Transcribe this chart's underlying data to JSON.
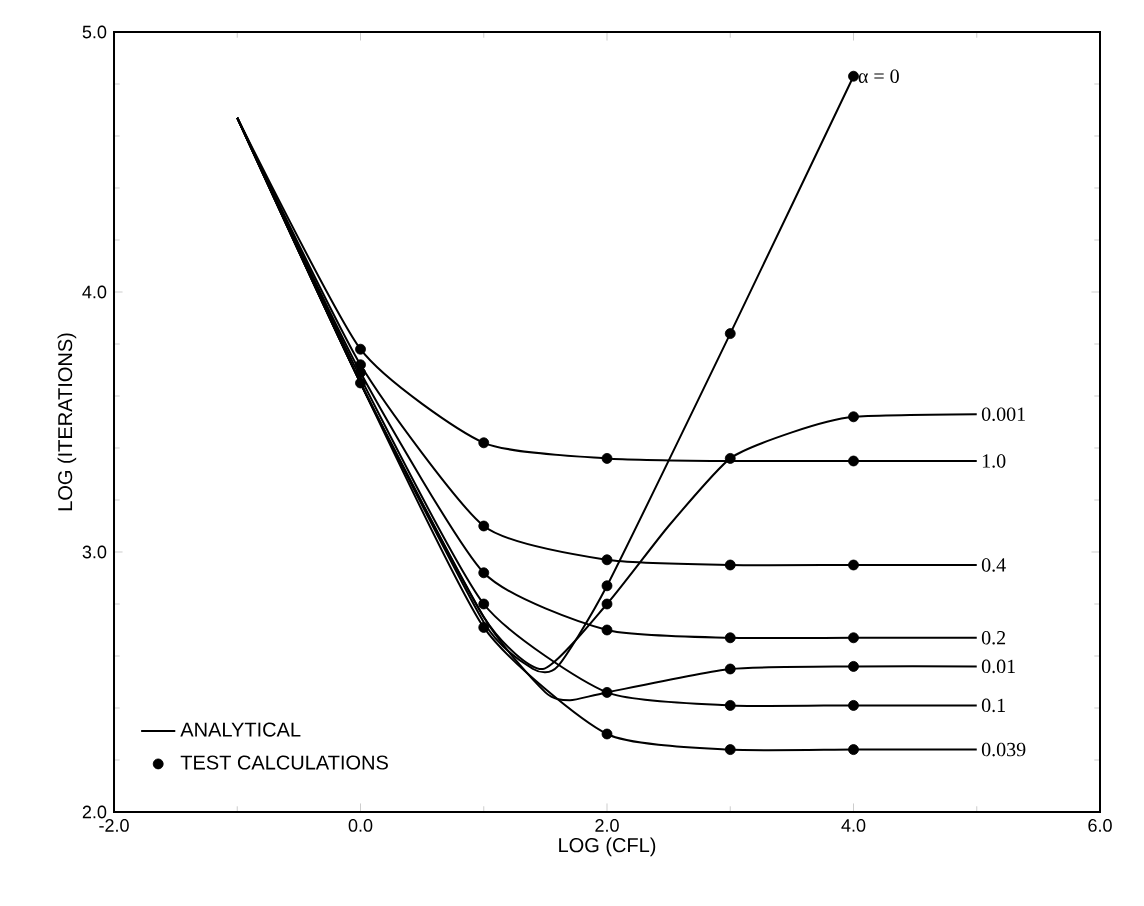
{
  "chart_data": {
    "type": "line",
    "xlabel": "LOG (CFL)",
    "ylabel": "LOG (ITERATIONS)",
    "xlim": [
      -2,
      6
    ],
    "ylim": [
      2,
      5
    ],
    "xticks": [
      {
        "value": -2,
        "label": "-2.0"
      },
      {
        "value": 0,
        "label": "0.0"
      },
      {
        "value": 2,
        "label": "2.0"
      },
      {
        "value": 4,
        "label": "4.0"
      },
      {
        "value": 6,
        "label": "6.0"
      }
    ],
    "yticks": [
      {
        "value": 2,
        "label": "2.0"
      },
      {
        "value": 3,
        "label": "3.0"
      },
      {
        "value": 4,
        "label": "4.0"
      },
      {
        "value": 5,
        "label": "5.0"
      }
    ],
    "grid": false,
    "legend": "bottom left",
    "line_style": "solid",
    "annotations": [
      "ANALYTICAL"
    ],
    "series": [
      {
        "name": "α = 0",
        "color": "#000000",
        "x": [
          -1,
          0,
          1,
          1.4,
          1.6,
          2,
          3,
          4
        ],
        "values": [
          4.67,
          3.65,
          2.73,
          2.55,
          2.56,
          2.87,
          3.84,
          4.83
        ]
      },
      {
        "name": "0.001",
        "color": "#000000",
        "x": [
          -1,
          0,
          1,
          1.48,
          2,
          2.5,
          3,
          3.5,
          4,
          5
        ],
        "values": [
          4.67,
          3.65,
          2.75,
          2.55,
          2.8,
          3.1,
          3.36,
          3.46,
          3.52,
          3.53
        ]
      },
      {
        "name": "1.0",
        "color": "#000000",
        "x": [
          -1,
          0,
          1,
          2,
          3,
          4,
          5
        ],
        "values": [
          4.67,
          3.78,
          3.42,
          3.36,
          3.35,
          3.35,
          3.35
        ]
      },
      {
        "name": "0.4",
        "color": "#000000",
        "x": [
          -1,
          0,
          1,
          2,
          3,
          4,
          5
        ],
        "values": [
          4.67,
          3.72,
          3.1,
          2.97,
          2.95,
          2.95,
          2.95
        ]
      },
      {
        "name": "0.2",
        "color": "#000000",
        "x": [
          -1,
          0,
          1,
          2,
          3,
          4,
          5
        ],
        "values": [
          4.67,
          3.69,
          2.92,
          2.7,
          2.67,
          2.67,
          2.67
        ]
      },
      {
        "name": "0.01",
        "color": "#000000",
        "x": [
          -1,
          0,
          1,
          1.5,
          1.7,
          2,
          3,
          4,
          5
        ],
        "values": [
          4.67,
          3.65,
          2.75,
          2.46,
          2.43,
          2.46,
          2.55,
          2.56,
          2.56
        ]
      },
      {
        "name": "0.1",
        "color": "#000000",
        "x": [
          -1,
          0,
          1,
          2,
          3,
          4,
          5
        ],
        "values": [
          4.67,
          3.67,
          2.8,
          2.46,
          2.41,
          2.41,
          2.41
        ]
      },
      {
        "name": "0.039",
        "color": "#000000",
        "x": [
          -1,
          0,
          1,
          2,
          3,
          4,
          5
        ],
        "values": [
          4.67,
          3.65,
          2.71,
          2.3,
          2.24,
          2.24,
          2.24
        ]
      },
      {
        "name": "TEST CALCULATIONS",
        "type": "scatter",
        "color": "#000000",
        "x": [
          0,
          0,
          0,
          0,
          1,
          1,
          1,
          1,
          1,
          2,
          2,
          2,
          2,
          2,
          2,
          2,
          3,
          3,
          3,
          3,
          3,
          3,
          3,
          4,
          4,
          4,
          4,
          4,
          4,
          4,
          4
        ],
        "values": [
          3.78,
          3.72,
          3.69,
          3.65,
          3.42,
          3.1,
          2.92,
          2.8,
          2.71,
          3.36,
          2.97,
          2.87,
          2.8,
          2.7,
          2.46,
          2.3,
          3.84,
          3.36,
          2.95,
          2.67,
          2.55,
          2.41,
          2.24,
          4.83,
          3.52,
          3.35,
          2.95,
          2.67,
          2.56,
          2.41,
          2.24
        ]
      }
    ]
  }
}
